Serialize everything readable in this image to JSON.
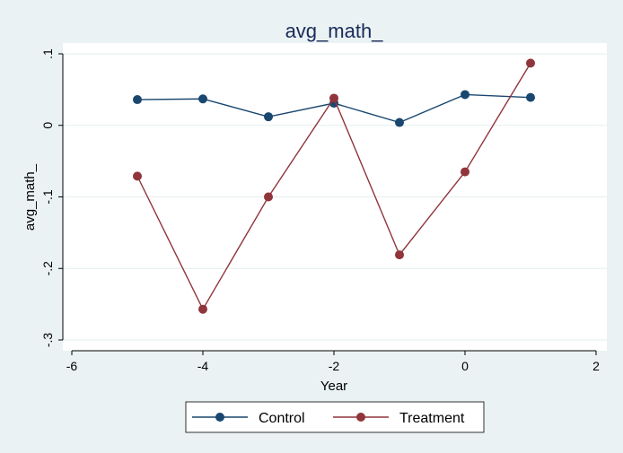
{
  "chart_data": {
    "type": "line",
    "title": "avg_math_",
    "xlabel": "Year",
    "ylabel": "avg_math_",
    "xlim": [
      -6,
      2
    ],
    "ylim": [
      -0.3,
      0.1
    ],
    "x_ticks": [
      -6,
      -4,
      -2,
      0,
      2
    ],
    "x_tick_labels": [
      "-6",
      "-4",
      "-2",
      "0",
      "2"
    ],
    "y_ticks": [
      -0.3,
      -0.2,
      -0.1,
      0,
      0.1
    ],
    "y_tick_labels": [
      "-.3",
      "-.2",
      "-.1",
      "0",
      ".1"
    ],
    "grid": true,
    "legend_position": "bottom",
    "series": [
      {
        "name": "Control",
        "color": "#1a476f",
        "x": [
          -5,
          -4,
          -3,
          -2,
          -1,
          0,
          1
        ],
        "y": [
          0.036,
          0.037,
          0.012,
          0.031,
          0.004,
          0.043,
          0.039
        ]
      },
      {
        "name": "Treatment",
        "color": "#90353b",
        "x": [
          -5,
          -4,
          -3,
          -2,
          -1,
          0,
          1
        ],
        "y": [
          -0.071,
          -0.257,
          -0.1,
          0.038,
          -0.181,
          -0.065,
          0.087
        ]
      }
    ]
  }
}
